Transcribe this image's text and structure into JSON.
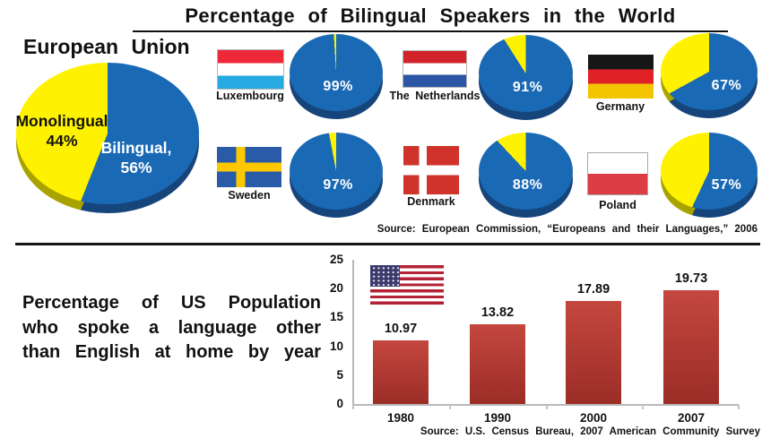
{
  "title": "Percentage of Bilingual Speakers in the World",
  "eu_section": {
    "heading": "European Union",
    "pie_labels": {
      "monolingual": "Monolingual",
      "monolingual_value": "44%",
      "bilingual": "Bilingual,",
      "bilingual_value": "56%"
    },
    "source": "Source: European Commission, “Europeans and their Languages,” 2006"
  },
  "us_section": {
    "heading_lines": [
      "Percentage of US Population",
      "who spoke a language other",
      "than English at home by year"
    ],
    "source": "Source: U.S. Census Bureau, 2007 American Community Survey"
  },
  "colors": {
    "pie_blue": "#1a69b4",
    "pie_blue_dark": "#16457c",
    "pie_yellow": "#fff200",
    "pie_yellow_dark": "#a9a300",
    "bar_top": "#c4473e",
    "bar_bottom": "#9b2d27"
  },
  "chart_data": [
    {
      "type": "pie",
      "title": "European Union",
      "slices": [
        {
          "label": "Bilingual",
          "value": 56,
          "color": "#1a69b4"
        },
        {
          "label": "Monolingual",
          "value": 44,
          "color": "#fff200"
        }
      ],
      "source": "Source: European Commission, “Europeans and their Languages,” 2006"
    },
    {
      "type": "pie",
      "title": "Bilingual speakers by country (%)",
      "items": [
        {
          "country": "Luxembourg",
          "flag": "luxembourg",
          "value": 99,
          "label": "99%"
        },
        {
          "country": "The Netherlands",
          "flag": "netherlands",
          "value": 91,
          "label": "91%"
        },
        {
          "country": "Germany",
          "flag": "germany",
          "value": 67,
          "label": "67%"
        },
        {
          "country": "Sweden",
          "flag": "sweden",
          "value": 97,
          "label": "97%"
        },
        {
          "country": "Denmark",
          "flag": "denmark",
          "value": 88,
          "label": "88%"
        },
        {
          "country": "Poland",
          "flag": "poland",
          "value": 57,
          "label": "57%"
        }
      ]
    },
    {
      "type": "bar",
      "title": "Percentage of US Population who spoke a language other than English at home by year",
      "categories": [
        "1980",
        "1990",
        "2000",
        "2007"
      ],
      "values": [
        10.97,
        13.82,
        17.89,
        19.73
      ],
      "value_labels": [
        "10.97",
        "13.82",
        "17.89",
        "19.73"
      ],
      "ylim": [
        0,
        25
      ],
      "yticks": [
        0,
        5,
        10,
        15,
        20,
        25
      ],
      "grid": false,
      "legend": "none",
      "source": "Source: U.S. Census Bureau, 2007 American Community Survey"
    }
  ]
}
